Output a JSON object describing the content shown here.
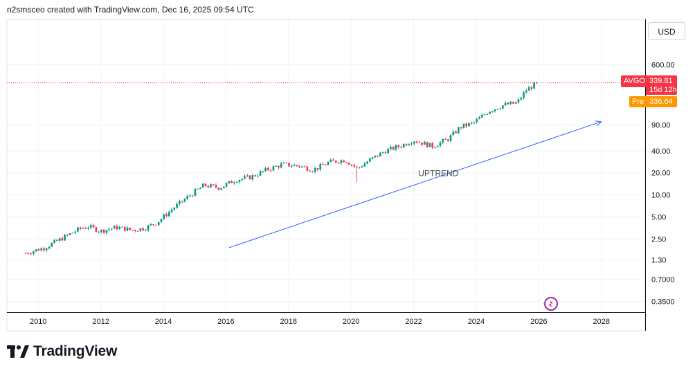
{
  "header": {
    "text": "n2smsceo created with TradingView.com, Dec 16, 2025 09:54 UTC"
  },
  "currency_button": "USD",
  "branding": {
    "name": "TradingView"
  },
  "price_badge": {
    "ticker": "AVGO",
    "price": "339.81",
    "countdown": "15d 12h"
  },
  "premarket_badge": {
    "label": "Pre",
    "price": "336.64"
  },
  "colors": {
    "up": "#089981",
    "down": "#f23645",
    "trendline": "#2962ff",
    "pre": "#ff9800",
    "grid": "#f0f3fa"
  },
  "chart_data": {
    "type": "candlestick",
    "symbol": "AVGO",
    "scale": "log",
    "annotations": [
      {
        "text": "UPTREND"
      }
    ],
    "x_ticks": [
      "2010",
      "2012",
      "2014",
      "2016",
      "2018",
      "2020",
      "2022",
      "2024",
      "2026",
      "2028"
    ],
    "y_ticks": [
      "600.00",
      "90.00",
      "40.00",
      "20.00",
      "10.00",
      "5.00",
      "2.50",
      "1.30",
      "0.7000",
      "0.3500"
    ],
    "y_range": [
      0.25,
      2500
    ],
    "x_range": [
      2009.0,
      2029.4
    ],
    "trendline": {
      "start": [
        2016.1,
        1.9
      ],
      "end": [
        2028.0,
        100
      ]
    },
    "last_price": 339.81,
    "premarket_price": 336.64,
    "trend_anchors": [
      [
        2009.6,
        1.6
      ],
      [
        2010.2,
        1.9
      ],
      [
        2010.8,
        2.6
      ],
      [
        2011.3,
        3.4
      ],
      [
        2011.6,
        3.7
      ],
      [
        2012.0,
        3.2
      ],
      [
        2012.5,
        3.6
      ],
      [
        2013.0,
        3.3
      ],
      [
        2013.4,
        3.5
      ],
      [
        2013.8,
        4.2
      ],
      [
        2014.3,
        6.5
      ],
      [
        2014.8,
        9.5
      ],
      [
        2015.3,
        13.5
      ],
      [
        2015.8,
        12.5
      ],
      [
        2016.3,
        16
      ],
      [
        2016.8,
        17.5
      ],
      [
        2017.3,
        22
      ],
      [
        2017.8,
        26
      ],
      [
        2018.3,
        25
      ],
      [
        2018.8,
        22
      ],
      [
        2019.3,
        28
      ],
      [
        2019.8,
        30
      ],
      [
        2020.2,
        23
      ],
      [
        2020.6,
        30
      ],
      [
        2021.1,
        40
      ],
      [
        2021.6,
        47
      ],
      [
        2022.0,
        56
      ],
      [
        2022.6,
        46
      ],
      [
        2023.1,
        58
      ],
      [
        2023.5,
        85
      ],
      [
        2023.9,
        95
      ],
      [
        2024.4,
        140
      ],
      [
        2024.9,
        170
      ],
      [
        2025.3,
        180
      ],
      [
        2025.6,
        270
      ],
      [
        2025.95,
        339.81
      ]
    ]
  }
}
